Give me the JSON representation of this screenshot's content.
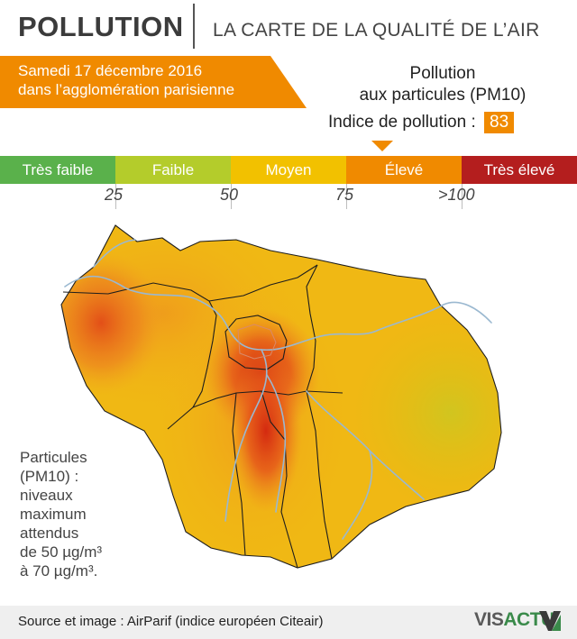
{
  "header": {
    "title": "POLLUTION",
    "subtitle": "LA CARTE DE LA QUALITÉ DE L’AIR"
  },
  "banner": {
    "line1": "Samedi 17 décembre 2016",
    "line2": "dans l’agglomération parisienne",
    "color": "#f08a00"
  },
  "pollutant": {
    "line1": "Pollution",
    "line2": "aux particules (PM10)",
    "index_label": "Indice de pollution",
    "index_sep": ":",
    "index_value": "83"
  },
  "scale": {
    "categories": [
      {
        "label": "Très faible",
        "color": "#5ab14b"
      },
      {
        "label": "Faible",
        "color": "#b4cc2b"
      },
      {
        "label": "Moyen",
        "color": "#f2c100"
      },
      {
        "label": "Élevé",
        "color": "#f08a00"
      },
      {
        "label": "Très élevé",
        "color": "#b41e1e"
      }
    ],
    "thresholds": [
      "25",
      "50",
      "75",
      ">100"
    ]
  },
  "note": {
    "lines": [
      "Particules",
      "(PM10) :",
      "niveaux",
      "maximum",
      "attendus",
      "de 50 µg/m³",
      "à 70 µg/m³."
    ]
  },
  "footer": {
    "source": "Source et image : AirParif (indice européen Citeair)",
    "brand_a": "VIS",
    "brand_b": "ACTU"
  }
}
